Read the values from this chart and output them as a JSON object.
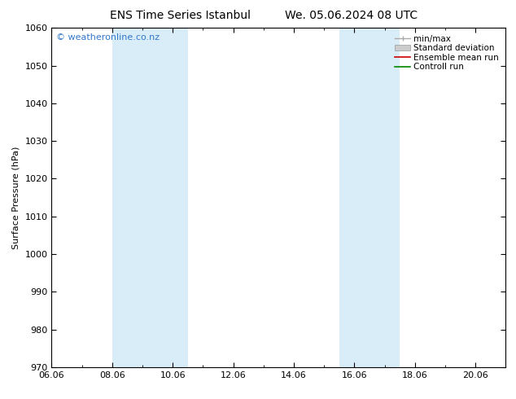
{
  "title_left": "ENS Time Series Istanbul",
  "title_right": "We. 05.06.2024 08 UTC",
  "ylabel": "Surface Pressure (hPa)",
  "ylim": [
    970,
    1060
  ],
  "yticks": [
    970,
    980,
    990,
    1000,
    1010,
    1020,
    1030,
    1040,
    1050,
    1060
  ],
  "xlim_num": [
    0,
    15
  ],
  "xtick_labels": [
    "06.06",
    "08.06",
    "10.06",
    "12.06",
    "14.06",
    "16.06",
    "18.06",
    "20.06"
  ],
  "xtick_positions": [
    0,
    2,
    4,
    6,
    8,
    10,
    12,
    14
  ],
  "shaded_bands": [
    {
      "xmin": 2,
      "xmax": 4.5,
      "color": "#d8edf8"
    },
    {
      "xmin": 9.5,
      "xmax": 11.5,
      "color": "#d8edf8"
    }
  ],
  "watermark": "© weatheronline.co.nz",
  "watermark_color": "#3377cc",
  "legend_items": [
    {
      "label": "min/max",
      "color": "#aaaaaa",
      "type": "line_with_bars"
    },
    {
      "label": "Standard deviation",
      "color": "#cccccc",
      "type": "fill"
    },
    {
      "label": "Ensemble mean run",
      "color": "#cc0000",
      "type": "line"
    },
    {
      "label": "Controll run",
      "color": "#008800",
      "type": "line"
    }
  ],
  "bg_color": "#ffffff",
  "plot_bg_color": "#ffffff",
  "border_color": "#000000",
  "tick_color": "#000000",
  "font_size_title": 10,
  "font_size_axis": 8,
  "font_size_tick": 8,
  "font_size_legend": 7.5,
  "font_size_watermark": 8
}
